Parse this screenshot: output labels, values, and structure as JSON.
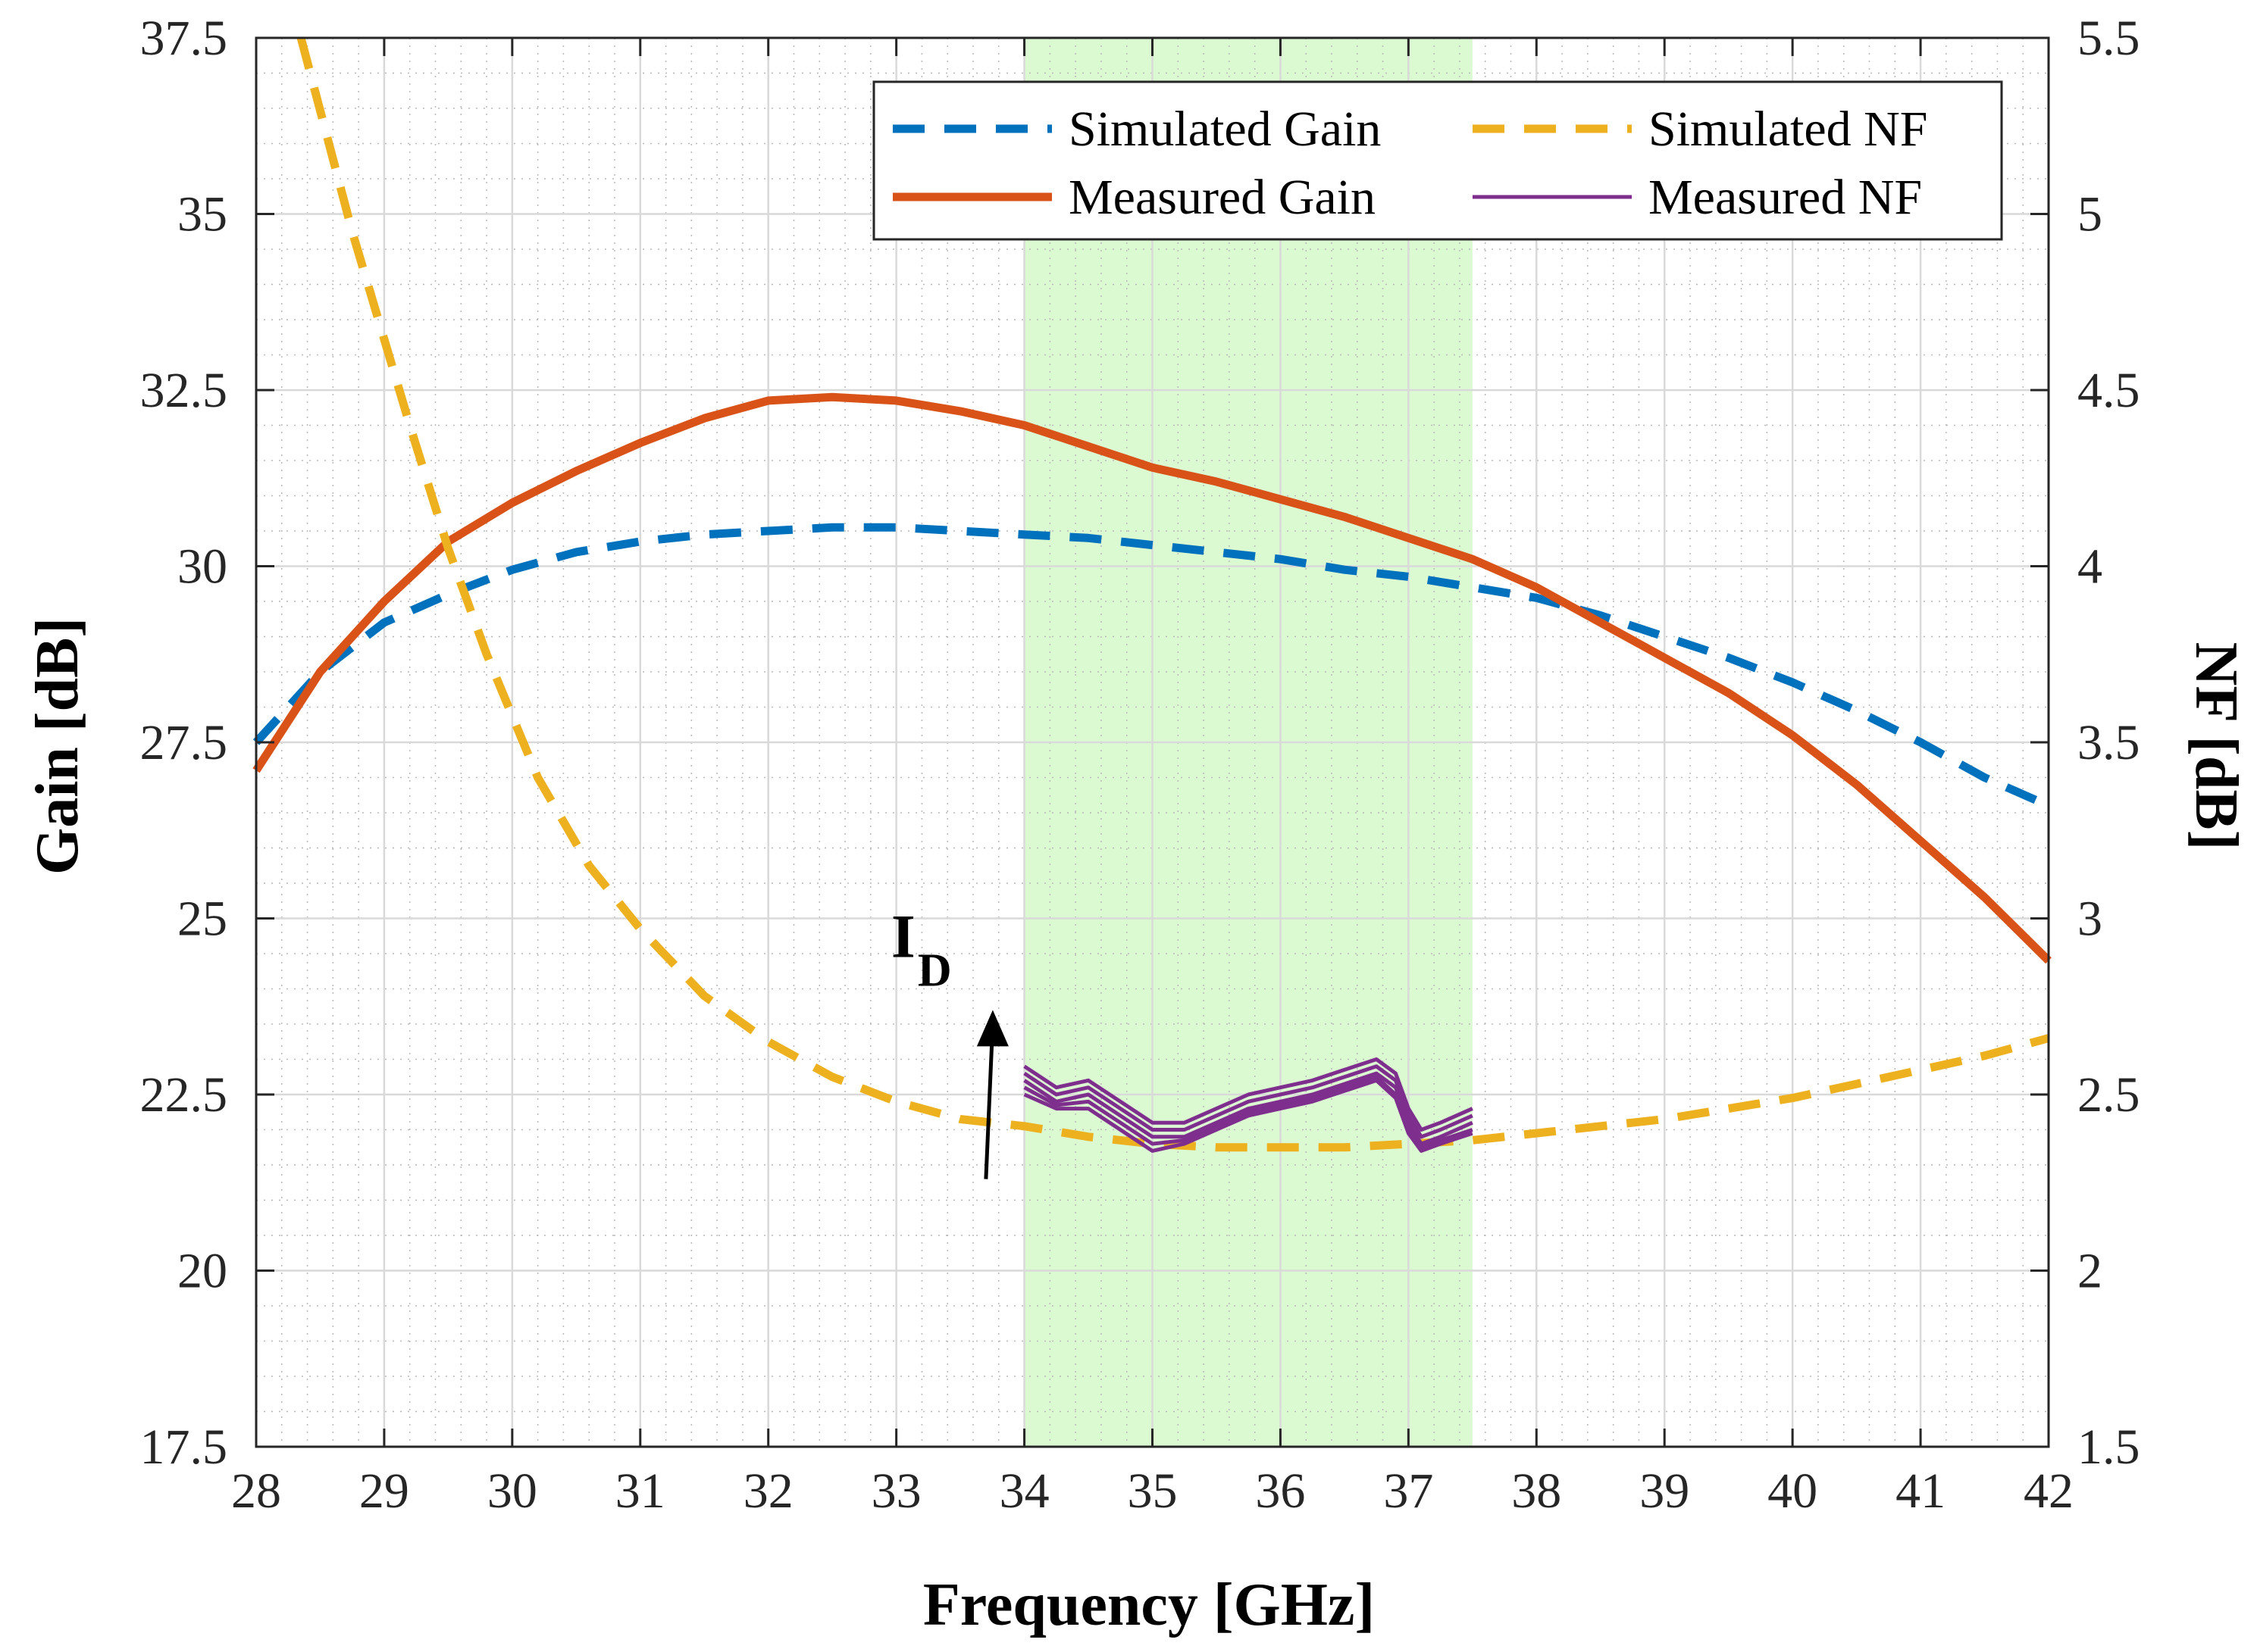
{
  "chart_data": {
    "type": "line",
    "xlabel": "Frequency [GHz]",
    "ylabel": "Gain [dB]",
    "y2label": "NF [dB]",
    "xlim": [
      28,
      42
    ],
    "ylim": [
      17.5,
      37.5
    ],
    "y2lim": [
      1.5,
      5.5
    ],
    "xticks": [
      "28",
      "29",
      "30",
      "31",
      "32",
      "33",
      "34",
      "35",
      "36",
      "37",
      "38",
      "39",
      "40",
      "41",
      "42"
    ],
    "yticks": [
      "17.5",
      "20",
      "22.5",
      "25",
      "27.5",
      "30",
      "32.5",
      "35",
      "37.5"
    ],
    "y2ticks": [
      "1.5",
      "2",
      "2.5",
      "3",
      "3.5",
      "4",
      "4.5",
      "5",
      "5.5"
    ],
    "grid": true,
    "minor_grid": true,
    "legend_position": "top-right",
    "highlight_band": {
      "x": [
        34,
        37.5
      ],
      "color": "#dcfad2"
    },
    "annotation": {
      "text": "I",
      "subscript": "D",
      "arrow_x": 33.7,
      "arrow_y_from": 21.3,
      "arrow_y_to": 23.7
    },
    "series": [
      {
        "name": "Simulated Gain",
        "axis": "left",
        "style": "dashed",
        "color": "#0072bd",
        "x": [
          28.0,
          28.5,
          29.0,
          29.5,
          30.0,
          30.5,
          31.0,
          31.5,
          32.0,
          32.5,
          33.0,
          33.5,
          34.0,
          34.5,
          35.0,
          35.5,
          36.0,
          36.5,
          37.0,
          37.5,
          38.0,
          38.5,
          39.0,
          39.5,
          40.0,
          40.5,
          41.0,
          41.5,
          42.0
        ],
        "y": [
          27.5,
          28.5,
          29.2,
          29.6,
          29.95,
          30.2,
          30.35,
          30.45,
          30.5,
          30.55,
          30.55,
          30.5,
          30.45,
          30.4,
          30.3,
          30.2,
          30.1,
          29.95,
          29.85,
          29.7,
          29.55,
          29.3,
          29.0,
          28.7,
          28.35,
          27.95,
          27.5,
          27.0,
          26.6
        ]
      },
      {
        "name": "Measured Gain",
        "axis": "left",
        "style": "solid",
        "color": "#d95319",
        "x": [
          28.0,
          28.5,
          29.0,
          29.5,
          30.0,
          30.5,
          31.0,
          31.5,
          32.0,
          32.5,
          33.0,
          33.5,
          34.0,
          34.5,
          35.0,
          35.5,
          36.0,
          36.5,
          37.0,
          37.5,
          38.0,
          38.5,
          39.0,
          39.5,
          40.0,
          40.5,
          41.0,
          41.5,
          42.0
        ],
        "y": [
          27.1,
          28.5,
          29.5,
          30.35,
          30.9,
          31.35,
          31.75,
          32.1,
          32.35,
          32.4,
          32.35,
          32.2,
          32.0,
          31.7,
          31.4,
          31.2,
          30.95,
          30.7,
          30.4,
          30.1,
          29.7,
          29.2,
          28.7,
          28.2,
          27.6,
          26.9,
          26.1,
          25.3,
          24.4
        ]
      },
      {
        "name": "Simulated NF",
        "axis": "right",
        "style": "dashed",
        "color": "#edb120",
        "x": [
          28.35,
          28.75,
          29.2,
          29.5,
          29.8,
          30.2,
          30.6,
          31.0,
          31.5,
          32.0,
          32.5,
          33.0,
          33.5,
          34.0,
          34.5,
          35.0,
          35.5,
          36.0,
          36.5,
          37.0,
          37.5,
          38.0,
          38.5,
          39.0,
          39.5,
          40.0,
          40.5,
          41.0,
          41.5,
          42.0
        ],
        "y": [
          5.5,
          4.95,
          4.4,
          4.05,
          3.75,
          3.4,
          3.15,
          2.97,
          2.78,
          2.65,
          2.55,
          2.48,
          2.43,
          2.41,
          2.38,
          2.36,
          2.35,
          2.35,
          2.35,
          2.36,
          2.37,
          2.39,
          2.41,
          2.43,
          2.46,
          2.49,
          2.53,
          2.57,
          2.61,
          2.66
        ]
      },
      {
        "name": "Measured NF",
        "axis": "left",
        "style": "solid",
        "color": "#7e2f8e",
        "x": [
          34.0,
          34.25,
          34.5,
          34.75,
          35.0,
          35.25,
          35.5,
          35.75,
          36.0,
          36.25,
          36.5,
          36.75,
          36.9,
          37.0,
          37.1,
          37.25,
          37.5
        ],
        "traces": [
          [
            22.9,
            22.6,
            22.7,
            22.4,
            22.1,
            22.1,
            22.3,
            22.5,
            22.6,
            22.7,
            22.85,
            23.0,
            22.8,
            22.3,
            22.0,
            22.1,
            22.3
          ],
          [
            22.8,
            22.5,
            22.6,
            22.3,
            22.0,
            22.0,
            22.2,
            22.4,
            22.5,
            22.6,
            22.75,
            22.9,
            22.7,
            22.2,
            21.9,
            22.0,
            22.2
          ],
          [
            22.7,
            22.4,
            22.5,
            22.2,
            21.9,
            21.9,
            22.1,
            22.3,
            22.4,
            22.5,
            22.65,
            22.8,
            22.6,
            22.1,
            21.8,
            21.9,
            22.1
          ],
          [
            22.6,
            22.35,
            22.4,
            22.1,
            21.8,
            21.85,
            22.05,
            22.25,
            22.35,
            22.45,
            22.6,
            22.75,
            22.5,
            22.0,
            21.75,
            21.85,
            22.0
          ],
          [
            22.5,
            22.3,
            22.3,
            22.0,
            21.7,
            21.8,
            22.0,
            22.2,
            22.3,
            22.4,
            22.55,
            22.7,
            22.45,
            21.95,
            21.7,
            21.8,
            21.95
          ]
        ]
      }
    ]
  }
}
